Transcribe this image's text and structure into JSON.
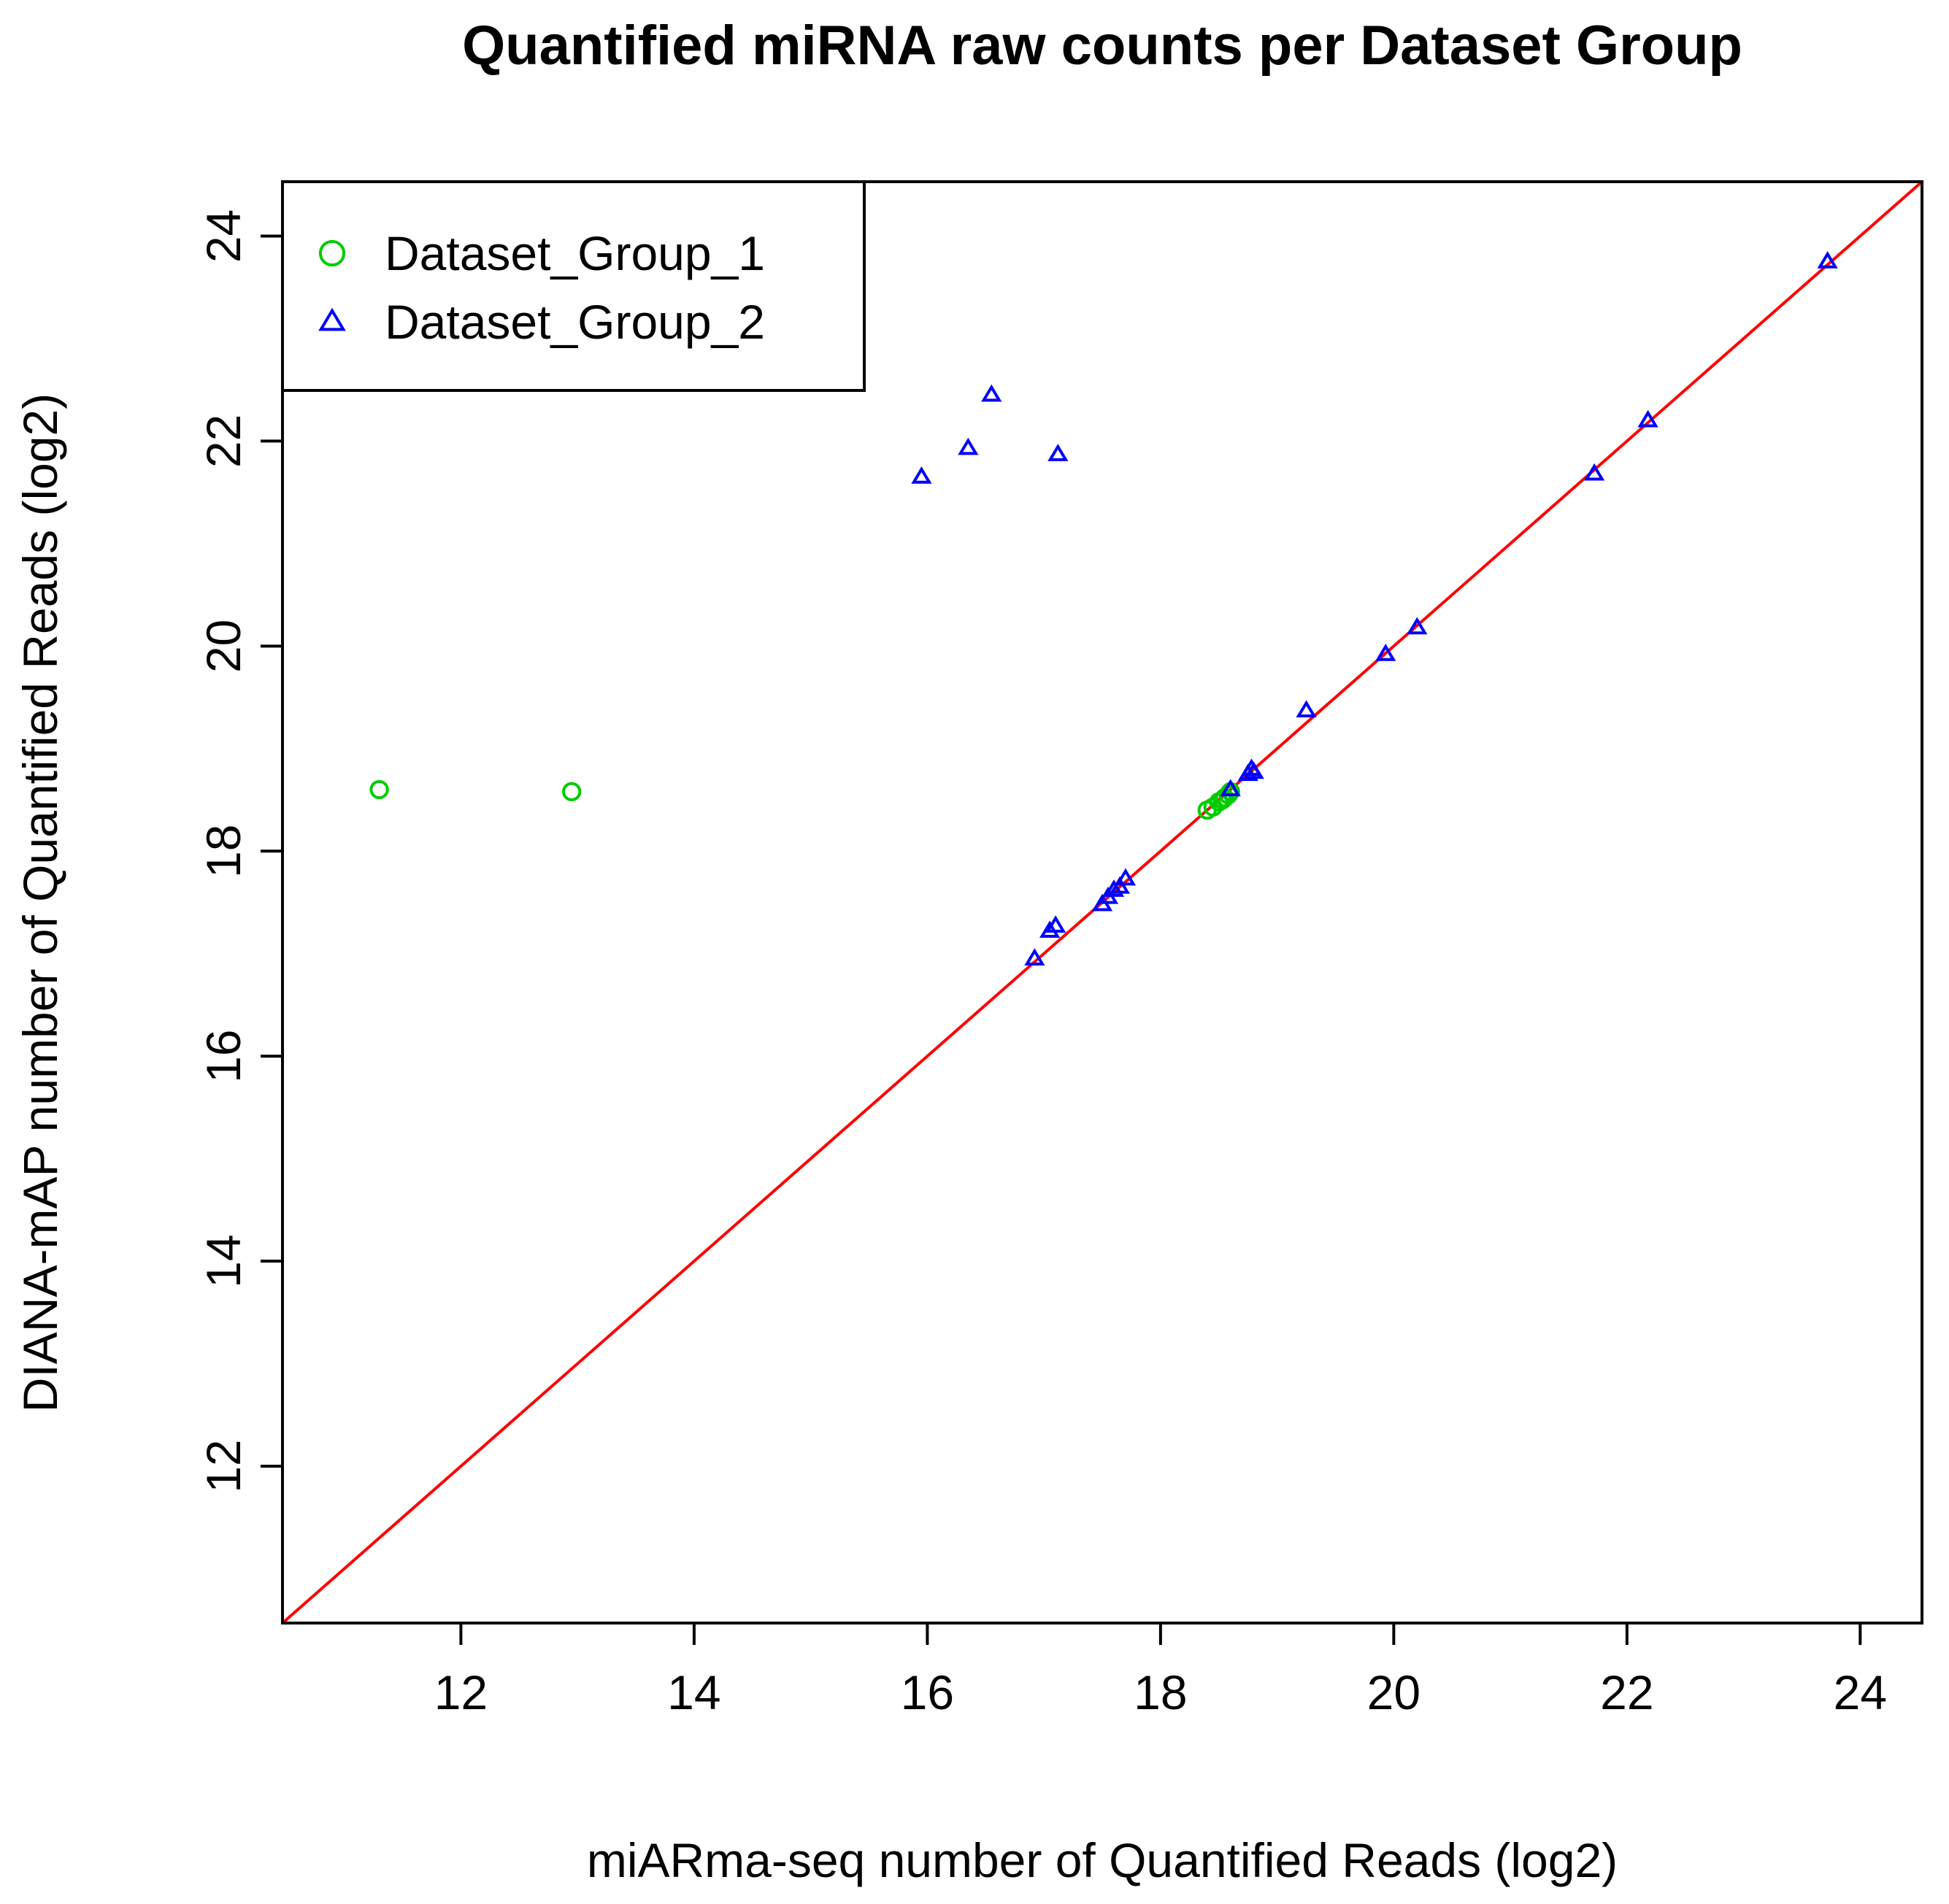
{
  "chart_data": {
    "type": "scatter",
    "title": "Quantified miRNA raw counts per Dataset Group",
    "xlabel": "miARma-seq number of Quantified Reads (log2)",
    "ylabel": "DIANA-mAP number of Quantified Reads (log2)",
    "xlim": [
      10.47,
      24.53
    ],
    "ylim": [
      10.47,
      24.53
    ],
    "x_ticks": [
      12,
      14,
      16,
      18,
      20,
      22,
      24
    ],
    "y_ticks": [
      12,
      14,
      16,
      18,
      20,
      22,
      24
    ],
    "x_tick_labels": [
      "12",
      "14",
      "16",
      "18",
      "20",
      "22",
      "24"
    ],
    "y_tick_labels": [
      "12",
      "14",
      "16",
      "18",
      "20",
      "22",
      "24"
    ],
    "legend_position": "top-left",
    "reference_line": {
      "type": "identity",
      "slope": 1,
      "intercept": 0,
      "color": "#ff0000"
    },
    "series": [
      {
        "name": "Dataset_Group_1",
        "marker": "circle",
        "color": "#00cc00",
        "points": [
          [
            11.3,
            18.6
          ],
          [
            12.95,
            18.58
          ],
          [
            18.4,
            18.4
          ],
          [
            18.45,
            18.43
          ],
          [
            18.5,
            18.48
          ],
          [
            18.53,
            18.5
          ],
          [
            18.55,
            18.52
          ],
          [
            18.58,
            18.55
          ],
          [
            18.6,
            18.58
          ]
        ]
      },
      {
        "name": "Dataset_Group_2",
        "marker": "triangle",
        "color": "#0000ff",
        "points": [
          [
            15.95,
            21.65
          ],
          [
            16.35,
            21.93
          ],
          [
            16.55,
            22.45
          ],
          [
            17.12,
            21.87
          ],
          [
            16.92,
            16.95
          ],
          [
            17.05,
            17.22
          ],
          [
            17.1,
            17.27
          ],
          [
            17.5,
            17.48
          ],
          [
            17.55,
            17.55
          ],
          [
            17.6,
            17.62
          ],
          [
            17.65,
            17.65
          ],
          [
            17.7,
            17.73
          ],
          [
            18.6,
            18.6
          ],
          [
            18.75,
            18.75
          ],
          [
            18.78,
            18.8
          ],
          [
            18.8,
            18.77
          ],
          [
            19.25,
            19.37
          ],
          [
            19.93,
            19.92
          ],
          [
            20.2,
            20.18
          ],
          [
            21.72,
            21.68
          ],
          [
            22.18,
            22.2
          ],
          [
            23.72,
            23.75
          ]
        ]
      }
    ]
  }
}
